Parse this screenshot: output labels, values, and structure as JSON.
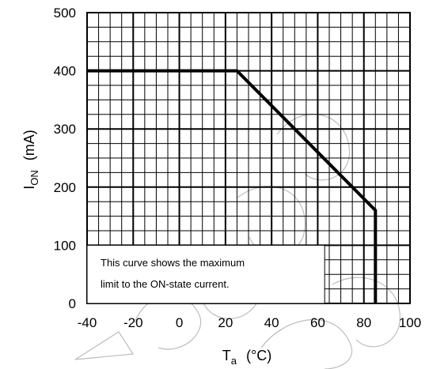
{
  "chart_data": {
    "type": "line",
    "x": [
      -40,
      25,
      85,
      85
    ],
    "series": [
      {
        "values": [
          400,
          400,
          160,
          0
        ]
      }
    ],
    "xlim": [
      -40,
      100
    ],
    "ylim": [
      0,
      500
    ],
    "xticks": [
      "-40",
      "-20",
      "0",
      "20",
      "40",
      "60",
      "80",
      "100"
    ],
    "yticks": [
      "0",
      "100",
      "200",
      "300",
      "400",
      "500"
    ],
    "xlabel": {
      "main": "T",
      "sub": "a",
      "unit": "(°C)"
    },
    "ylabel": {
      "main": "I",
      "sub": "ON",
      "unit": "(mA)"
    },
    "grid": true,
    "annotation": {
      "line1": "This curve shows the maximum",
      "line2": "limit to the ON-state current."
    },
    "colors": {
      "line": "#000000",
      "grid": "#000000",
      "watermark": "#bdbdbd"
    }
  }
}
